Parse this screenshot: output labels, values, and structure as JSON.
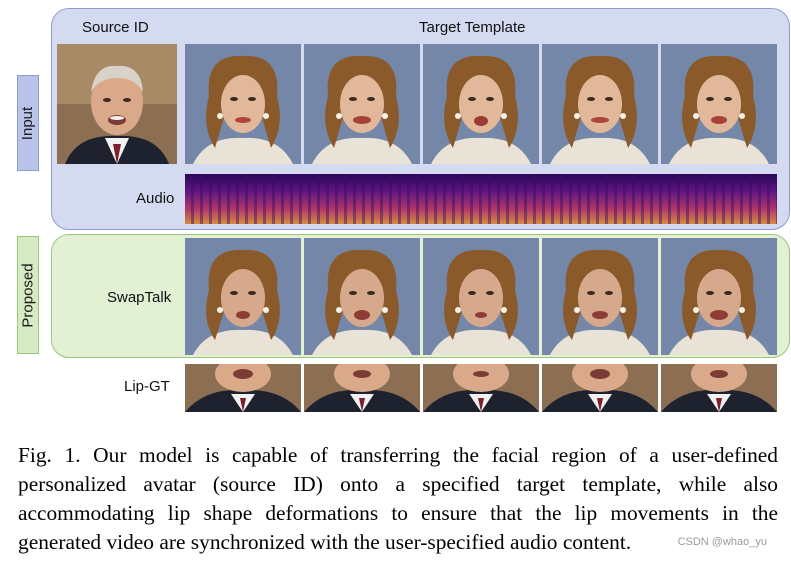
{
  "figure": {
    "header": {
      "source_id": "Source ID",
      "target_template": "Target Template"
    },
    "groups": {
      "input": "Input",
      "proposed": "Proposed"
    },
    "rows": {
      "audio": "Audio",
      "swaptalk": "SwapTalk",
      "lip_gt": "Lip-GT"
    },
    "frame_count": 5
  },
  "caption": "Fig. 1.  Our model is capable of transferring the facial region of a user-defined personalized avatar (source ID) onto a specified target template, while also accommodating lip shape deformations to ensure that the lip movements in the generated video are synchronized with the user-specified audio content.",
  "watermark": "CSDN @whao_yu",
  "colors": {
    "input_panel": "#d4daf0",
    "input_border": "#8e9cd2",
    "proposed_panel": "#e2f0d4",
    "proposed_border": "#9cc47d",
    "spectrogram_low": "#3a0a6b",
    "spectrogram_high": "#f2a33a"
  }
}
